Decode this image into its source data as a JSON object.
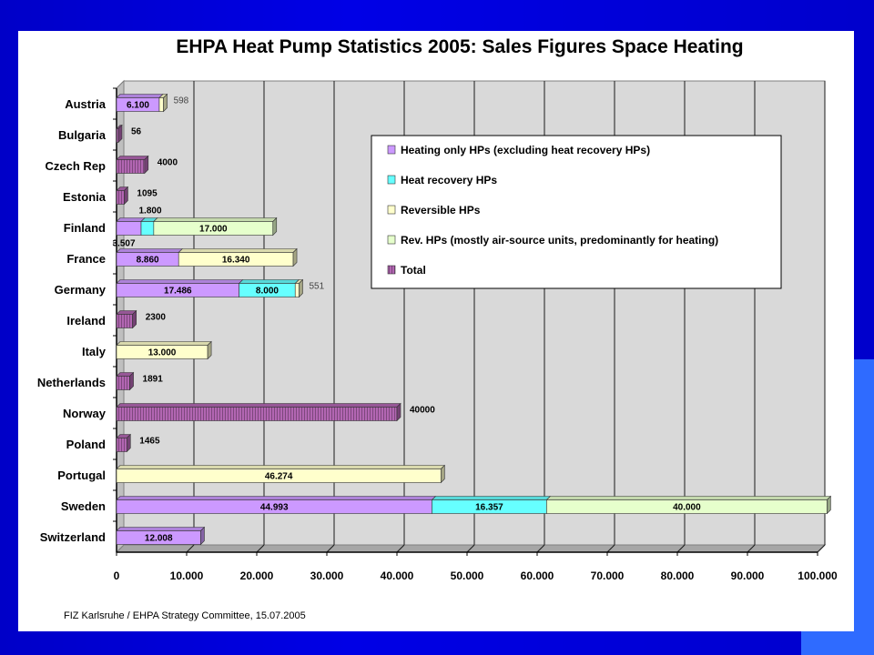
{
  "colors": {
    "heating_only": "#cc99ff",
    "heat_recovery": "#66ffff",
    "reversible": "#ffffcc",
    "rev_air_source": "#e6ffcc",
    "total": "#b266b2",
    "plot_bg": "#d9d9d9",
    "background": "#0000dd",
    "accent": "#2f6bff"
  },
  "source_note": "FIZ Karlsruhe / EHPA Strategy Committee, 15.07.2005",
  "chart_data": {
    "type": "bar",
    "orientation": "horizontal",
    "stacked": true,
    "title": "EHPA Heat Pump Statistics 2005: Sales Figures Space Heating",
    "xlabel": "",
    "ylabel": "",
    "xlim": [
      0,
      100000
    ],
    "x_ticks": [
      "0",
      "10.000",
      "20.000",
      "30.000",
      "40.000",
      "50.000",
      "60.000",
      "70.000",
      "80.000",
      "90.000",
      "100.000"
    ],
    "grid": true,
    "legend_position": "top-right",
    "categories": [
      "Austria",
      "Bulgaria",
      "Czech Rep",
      "Estonia",
      "Finland",
      "France",
      "Germany",
      "Ireland",
      "Italy",
      "Netherlands",
      "Norway",
      "Poland",
      "Portugal",
      "Sweden",
      "Switzerland"
    ],
    "series": [
      {
        "name": "Heating only HPs (excluding heat recovery HPs)",
        "key": "heating_only",
        "values": [
          6100,
          0,
          0,
          0,
          3507,
          8860,
          17486,
          0,
          0,
          0,
          0,
          0,
          0,
          44993,
          12008
        ],
        "labels": [
          "6.100",
          "",
          "",
          "",
          "3.507",
          "8.860",
          "17.486",
          "",
          "",
          "",
          "",
          "",
          "",
          "44.993",
          "12.008"
        ]
      },
      {
        "name": "Heat recovery HPs",
        "key": "heat_recovery",
        "values": [
          0,
          0,
          0,
          0,
          1800,
          0,
          8000,
          0,
          0,
          0,
          0,
          0,
          0,
          16357,
          0
        ],
        "labels": [
          "",
          "",
          "",
          "",
          "1.800",
          "",
          "8.000",
          "",
          "",
          "",
          "",
          "",
          "",
          "16.357",
          ""
        ]
      },
      {
        "name": "Reversible HPs",
        "key": "reversible",
        "values": [
          598,
          0,
          0,
          0,
          0,
          16340,
          551,
          0,
          13000,
          0,
          0,
          0,
          46274,
          0,
          0
        ],
        "labels": [
          "598",
          "",
          "",
          "",
          "",
          "16.340",
          "551",
          "",
          "13.000",
          "",
          "",
          "",
          "46.274",
          "",
          ""
        ]
      },
      {
        "name": "Rev. HPs (mostly air-source units, predominantly for heating)",
        "key": "rev_air_source",
        "values": [
          0,
          0,
          0,
          0,
          17000,
          0,
          0,
          0,
          0,
          0,
          0,
          0,
          0,
          40000,
          0
        ],
        "labels": [
          "",
          "",
          "",
          "",
          "17.000",
          "",
          "",
          "",
          "",
          "",
          "",
          "",
          "",
          "40.000",
          ""
        ]
      },
      {
        "name": "Total",
        "key": "total",
        "values": [
          0,
          56,
          4000,
          1095,
          0,
          0,
          0,
          2300,
          0,
          1891,
          40000,
          1465,
          0,
          0,
          0
        ],
        "labels": [
          "",
          "56",
          "4000",
          "1095",
          "",
          "",
          "",
          "2300",
          "",
          "1891",
          "40000",
          "1465",
          "",
          "",
          ""
        ]
      }
    ]
  }
}
